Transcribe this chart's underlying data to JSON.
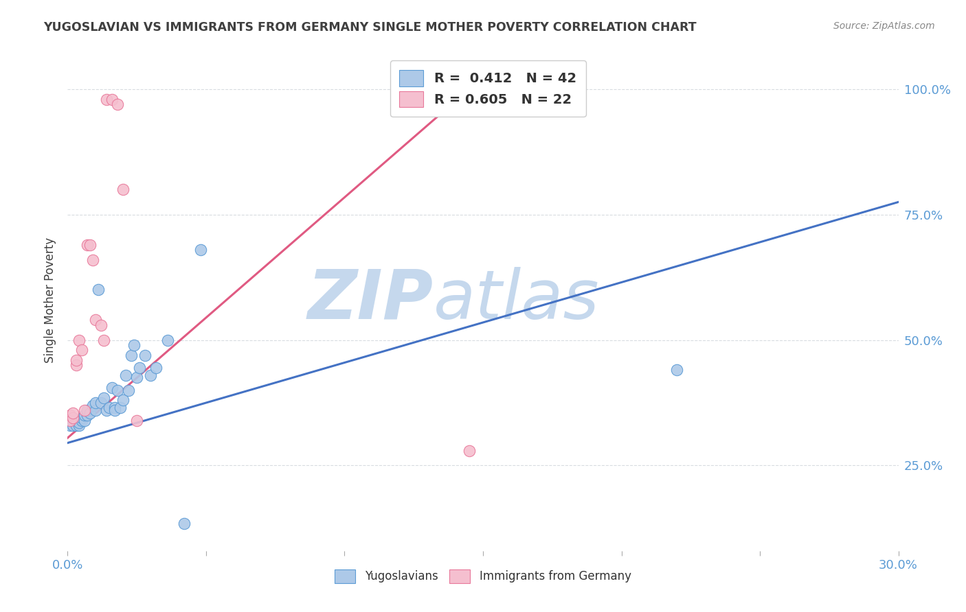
{
  "title": "YUGOSLAVIAN VS IMMIGRANTS FROM GERMANY SINGLE MOTHER POVERTY CORRELATION CHART",
  "source": "Source: ZipAtlas.com",
  "ylabel": "Single Mother Poverty",
  "legend_blue_label": "Yugoslavians",
  "legend_pink_label": "Immigrants from Germany",
  "blue_scatter_x": [
    0.001,
    0.001,
    0.002,
    0.002,
    0.003,
    0.003,
    0.004,
    0.004,
    0.005,
    0.005,
    0.006,
    0.006,
    0.007,
    0.007,
    0.008,
    0.009,
    0.01,
    0.01,
    0.011,
    0.012,
    0.013,
    0.014,
    0.015,
    0.016,
    0.017,
    0.017,
    0.018,
    0.019,
    0.02,
    0.021,
    0.022,
    0.023,
    0.024,
    0.025,
    0.026,
    0.028,
    0.03,
    0.032,
    0.036,
    0.042,
    0.048,
    0.22
  ],
  "blue_scatter_y": [
    0.33,
    0.34,
    0.33,
    0.34,
    0.33,
    0.34,
    0.33,
    0.335,
    0.34,
    0.345,
    0.34,
    0.35,
    0.35,
    0.36,
    0.355,
    0.37,
    0.36,
    0.375,
    0.6,
    0.375,
    0.385,
    0.36,
    0.365,
    0.405,
    0.365,
    0.36,
    0.4,
    0.365,
    0.38,
    0.43,
    0.4,
    0.47,
    0.49,
    0.425,
    0.445,
    0.47,
    0.43,
    0.445,
    0.5,
    0.135,
    0.68,
    0.44
  ],
  "pink_scatter_x": [
    0.001,
    0.001,
    0.002,
    0.002,
    0.003,
    0.003,
    0.004,
    0.005,
    0.006,
    0.007,
    0.008,
    0.009,
    0.01,
    0.012,
    0.013,
    0.014,
    0.016,
    0.018,
    0.02,
    0.025,
    0.14,
    0.145
  ],
  "pink_scatter_y": [
    0.34,
    0.35,
    0.345,
    0.355,
    0.45,
    0.46,
    0.5,
    0.48,
    0.36,
    0.69,
    0.69,
    0.66,
    0.54,
    0.53,
    0.5,
    0.98,
    0.98,
    0.97,
    0.8,
    0.34,
    0.97,
    0.28
  ],
  "blue_line_x": [
    0.0,
    0.3
  ],
  "blue_line_y": [
    0.295,
    0.775
  ],
  "pink_line_x": [
    0.0,
    0.145
  ],
  "pink_line_y": [
    0.305,
    1.0
  ],
  "xlim": [
    0.0,
    0.3
  ],
  "ylim": [
    0.08,
    1.08
  ],
  "ytick_positions": [
    0.25,
    0.5,
    0.75,
    1.0
  ],
  "ytick_labels": [
    "25.0%",
    "50.0%",
    "75.0%",
    "100.0%"
  ],
  "xtick_positions": [
    0.0,
    0.05,
    0.1,
    0.15,
    0.2,
    0.25,
    0.3
  ],
  "xtick_labels": [
    "0.0%",
    "",
    "",
    "",
    "",
    "",
    "30.0%"
  ],
  "blue_color": "#adc9e8",
  "pink_color": "#f5bfcf",
  "blue_edge_color": "#5b9bd5",
  "pink_edge_color": "#e8789a",
  "blue_line_color": "#4472c4",
  "pink_line_color": "#e05a82",
  "background_color": "#ffffff",
  "grid_color": "#d8dce0",
  "watermark_zip": "ZIP",
  "watermark_atlas": "atlas",
  "watermark_color": "#c5d8ed",
  "tick_label_color": "#5b9bd5",
  "title_color": "#404040",
  "ylabel_color": "#404040",
  "source_color": "#888888"
}
